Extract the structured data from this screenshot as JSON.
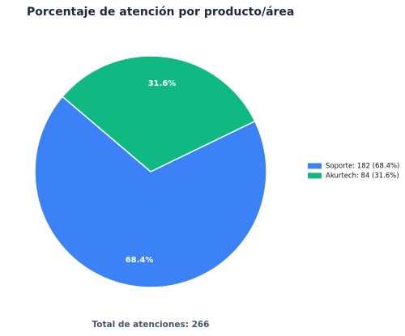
{
  "chart_data": {
    "type": "pie",
    "title": "Porcentaje de atención por producto/área",
    "categories": [
      "Soporte: 182 (68.4%)",
      "Akurtech: 84 (31.6%)"
    ],
    "values": [
      68.4,
      31.6
    ],
    "value_labels": [
      "68.4%",
      "31.6%"
    ],
    "colors": [
      "#3b82f6",
      "#10b981"
    ],
    "legend": "right",
    "footer": "Total de atenciones: 266"
  }
}
